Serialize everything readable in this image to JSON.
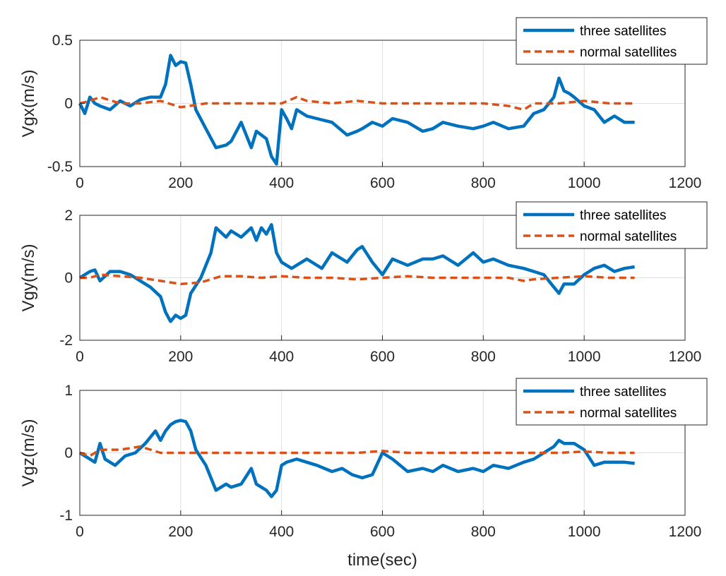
{
  "chart_data": [
    {
      "type": "line",
      "ylabel": "Vgx(m/s)",
      "xlabel": "",
      "xlim": [
        0,
        1200
      ],
      "ylim": [
        -0.5,
        0.5
      ],
      "xticks": [
        "0",
        "200",
        "400",
        "600",
        "800",
        "1000",
        "1200"
      ],
      "yticks": [
        "-0.5",
        "0",
        "0.5"
      ],
      "ytick_values": [
        -0.5,
        0,
        0.5
      ],
      "grid": true,
      "legend_position": "top-right",
      "series": [
        {
          "name": "three satellites",
          "x": [
            0,
            10,
            20,
            30,
            40,
            60,
            80,
            100,
            120,
            140,
            160,
            170,
            180,
            190,
            200,
            210,
            220,
            230,
            250,
            270,
            290,
            300,
            320,
            340,
            350,
            370,
            380,
            390,
            400,
            410,
            420,
            430,
            450,
            470,
            500,
            530,
            550,
            560,
            580,
            600,
            620,
            650,
            680,
            700,
            720,
            750,
            780,
            800,
            820,
            850,
            880,
            900,
            920,
            930,
            940,
            950,
            960,
            970,
            980,
            1000,
            1020,
            1040,
            1060,
            1080,
            1100
          ],
          "values": [
            0.0,
            -0.08,
            0.05,
            0.0,
            -0.02,
            -0.05,
            0.02,
            -0.02,
            0.03,
            0.05,
            0.05,
            0.15,
            0.38,
            0.3,
            0.33,
            0.32,
            0.15,
            -0.05,
            -0.2,
            -0.35,
            -0.33,
            -0.3,
            -0.15,
            -0.35,
            -0.22,
            -0.28,
            -0.42,
            -0.48,
            -0.05,
            -0.12,
            -0.2,
            -0.05,
            -0.1,
            -0.12,
            -0.15,
            -0.25,
            -0.22,
            -0.2,
            -0.15,
            -0.18,
            -0.12,
            -0.15,
            -0.22,
            -0.2,
            -0.15,
            -0.18,
            -0.2,
            -0.18,
            -0.15,
            -0.2,
            -0.18,
            -0.08,
            -0.05,
            0.0,
            0.05,
            0.2,
            0.1,
            0.08,
            0.05,
            -0.02,
            -0.05,
            -0.15,
            -0.1,
            -0.15,
            -0.15
          ]
        },
        {
          "name": "normal satellites",
          "x": [
            0,
            20,
            40,
            80,
            120,
            160,
            200,
            250,
            300,
            350,
            400,
            430,
            450,
            500,
            550,
            600,
            650,
            700,
            750,
            800,
            850,
            880,
            900,
            950,
            1000,
            1050,
            1100
          ],
          "values": [
            0.0,
            0.02,
            0.05,
            0.0,
            0.0,
            0.02,
            -0.03,
            0.0,
            0.0,
            0.0,
            0.0,
            0.05,
            0.02,
            0.0,
            0.02,
            0.0,
            0.0,
            0.0,
            0.0,
            0.0,
            -0.02,
            -0.05,
            0.0,
            0.0,
            0.02,
            0.0,
            0.0
          ]
        }
      ]
    },
    {
      "type": "line",
      "ylabel": "Vgy(m/s)",
      "xlabel": "",
      "xlim": [
        0,
        1200
      ],
      "ylim": [
        -2,
        2
      ],
      "xticks": [
        "0",
        "200",
        "400",
        "600",
        "800",
        "1000",
        "1200"
      ],
      "yticks": [
        "-2",
        "0",
        "2"
      ],
      "ytick_values": [
        -2,
        0,
        2
      ],
      "grid": true,
      "legend_position": "top-right",
      "series": [
        {
          "name": "three satellites",
          "x": [
            0,
            20,
            30,
            40,
            60,
            80,
            100,
            120,
            140,
            160,
            170,
            180,
            190,
            200,
            210,
            220,
            240,
            260,
            270,
            290,
            300,
            320,
            340,
            350,
            360,
            370,
            380,
            390,
            400,
            420,
            450,
            480,
            500,
            530,
            550,
            560,
            580,
            600,
            620,
            650,
            680,
            700,
            720,
            750,
            780,
            800,
            820,
            850,
            880,
            900,
            920,
            940,
            950,
            960,
            980,
            1000,
            1020,
            1040,
            1060,
            1080,
            1100
          ],
          "values": [
            0.0,
            0.2,
            0.25,
            -0.1,
            0.2,
            0.2,
            0.1,
            -0.1,
            -0.3,
            -0.6,
            -1.1,
            -1.4,
            -1.2,
            -1.3,
            -1.2,
            -0.5,
            0.0,
            0.8,
            1.6,
            1.3,
            1.5,
            1.3,
            1.6,
            1.2,
            1.6,
            1.4,
            1.7,
            0.8,
            0.5,
            0.3,
            0.6,
            0.3,
            0.8,
            0.5,
            0.9,
            1.0,
            0.5,
            0.1,
            0.6,
            0.4,
            0.6,
            0.6,
            0.7,
            0.4,
            0.8,
            0.5,
            0.6,
            0.4,
            0.3,
            0.2,
            0.1,
            -0.3,
            -0.5,
            -0.2,
            -0.2,
            0.1,
            0.3,
            0.4,
            0.2,
            0.3,
            0.35
          ]
        },
        {
          "name": "normal satellites",
          "x": [
            0,
            20,
            40,
            80,
            120,
            160,
            200,
            240,
            280,
            320,
            360,
            400,
            450,
            500,
            550,
            600,
            650,
            700,
            750,
            800,
            850,
            880,
            900,
            950,
            1000,
            1050,
            1100
          ],
          "values": [
            0.0,
            0.0,
            0.1,
            0.05,
            0.0,
            -0.1,
            -0.2,
            -0.15,
            0.05,
            0.05,
            0.0,
            0.05,
            0.0,
            0.0,
            -0.05,
            0.0,
            0.05,
            0.0,
            0.0,
            0.0,
            0.0,
            -0.1,
            -0.05,
            0.0,
            0.05,
            0.0,
            0.0
          ]
        }
      ]
    },
    {
      "type": "line",
      "ylabel": "Vgz(m/s)",
      "xlabel": "time(sec)",
      "xlim": [
        0,
        1200
      ],
      "ylim": [
        -1,
        1
      ],
      "xticks": [
        "0",
        "200",
        "400",
        "600",
        "800",
        "1000",
        "1200"
      ],
      "yticks": [
        "-1",
        "0",
        "1"
      ],
      "ytick_values": [
        -1,
        0,
        1
      ],
      "grid": true,
      "legend_position": "top-right",
      "series": [
        {
          "name": "three satellites",
          "x": [
            0,
            10,
            20,
            30,
            40,
            50,
            70,
            90,
            110,
            130,
            150,
            160,
            170,
            180,
            190,
            200,
            210,
            220,
            230,
            250,
            270,
            290,
            300,
            320,
            340,
            350,
            370,
            380,
            390,
            400,
            410,
            430,
            450,
            470,
            500,
            520,
            540,
            560,
            580,
            600,
            620,
            650,
            680,
            700,
            720,
            750,
            780,
            800,
            820,
            850,
            880,
            900,
            920,
            940,
            950,
            960,
            980,
            1000,
            1020,
            1040,
            1060,
            1080,
            1100
          ],
          "values": [
            0.0,
            -0.05,
            -0.1,
            -0.15,
            0.15,
            -0.1,
            -0.2,
            -0.05,
            0.0,
            0.15,
            0.35,
            0.2,
            0.35,
            0.45,
            0.5,
            0.52,
            0.5,
            0.35,
            0.05,
            -0.2,
            -0.6,
            -0.5,
            -0.55,
            -0.5,
            -0.25,
            -0.5,
            -0.6,
            -0.7,
            -0.6,
            -0.2,
            -0.15,
            -0.1,
            -0.15,
            -0.2,
            -0.3,
            -0.25,
            -0.35,
            -0.4,
            -0.35,
            0.0,
            -0.1,
            -0.3,
            -0.25,
            -0.3,
            -0.2,
            -0.3,
            -0.25,
            -0.3,
            -0.2,
            -0.25,
            -0.15,
            -0.1,
            0.0,
            0.1,
            0.2,
            0.15,
            0.15,
            0.05,
            -0.2,
            -0.15,
            -0.15,
            -0.15,
            -0.17
          ]
        },
        {
          "name": "normal satellites",
          "x": [
            0,
            20,
            40,
            80,
            120,
            160,
            200,
            250,
            300,
            350,
            400,
            450,
            500,
            550,
            600,
            650,
            700,
            750,
            800,
            850,
            900,
            950,
            1000,
            1050,
            1100
          ],
          "values": [
            0.0,
            -0.05,
            0.05,
            0.05,
            0.1,
            0.0,
            0.0,
            0.0,
            0.0,
            0.0,
            0.0,
            0.0,
            0.0,
            0.0,
            0.03,
            0.0,
            0.0,
            0.0,
            0.0,
            0.0,
            0.0,
            0.0,
            0.02,
            0.0,
            0.0
          ]
        }
      ]
    }
  ],
  "colors": {
    "three_satellites": "#0072BD",
    "normal_satellites": "#D95319",
    "axis": "#262626",
    "grid": "#E0E0E0",
    "background": "#FFFFFF"
  }
}
